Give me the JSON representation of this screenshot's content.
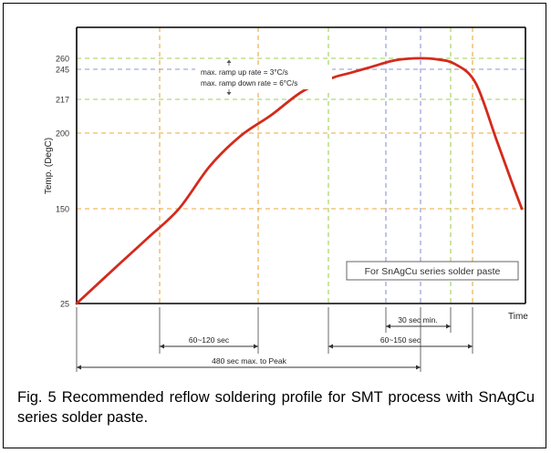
{
  "caption": "Fig. 5 Recommended reflow soldering profile for SMT process with SnAgCu series solder paste.",
  "chart_data": {
    "type": "line",
    "xlabel": "Time",
    "ylabel": "Temp. (DegC)",
    "y_ticks": [
      25,
      150,
      200,
      217,
      245,
      260
    ],
    "series": [
      {
        "color": "#d42a1c",
        "points": [
          [
            0,
            25
          ],
          [
            40,
            75
          ],
          [
            70,
            112
          ],
          [
            100,
            150
          ],
          [
            130,
            178
          ],
          [
            160,
            198
          ],
          [
            190,
            209
          ],
          [
            220,
            224
          ],
          [
            250,
            237
          ],
          [
            265,
            241
          ],
          [
            285,
            247
          ],
          [
            310,
            257
          ],
          [
            330,
            260
          ],
          [
            350,
            259
          ],
          [
            370,
            252
          ],
          [
            390,
            232
          ],
          [
            410,
            196
          ],
          [
            425,
            168
          ],
          [
            435,
            150
          ]
        ]
      }
    ],
    "annotations": {
      "rate_lines": [
        "max. ramp up rate = 3°C/s",
        "max. ramp down rate = 6°C/s"
      ],
      "legend_box": "For SnAgCu series solder paste",
      "intervals": [
        "60~120 sec",
        "60~150 sec",
        "30 sec min.",
        "480 sec max. to Peak"
      ]
    },
    "colors": {
      "orange_guides": "#e8a93d",
      "green_guides": "#9fcf55",
      "blue_guides": "#8c94d4",
      "axes": "#000000",
      "curve": "#d42a1c"
    },
    "grid": false
  }
}
